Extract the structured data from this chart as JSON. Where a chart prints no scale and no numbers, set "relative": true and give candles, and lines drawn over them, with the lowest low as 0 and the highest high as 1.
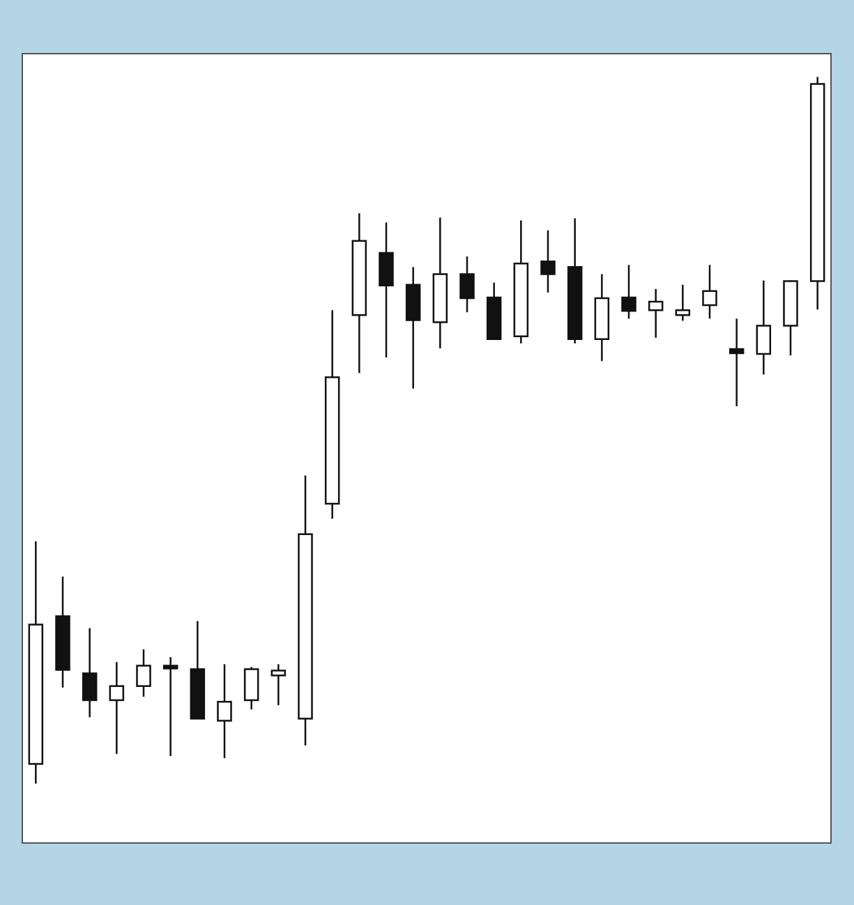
{
  "chart_data": {
    "type": "candlestick",
    "relative": true,
    "categories": [
      null,
      null,
      null,
      null,
      null,
      null,
      null,
      null,
      null,
      null,
      null,
      null,
      null,
      null,
      null,
      null,
      null,
      null,
      null,
      null,
      null,
      null,
      null,
      null,
      null,
      null,
      null,
      null,
      null,
      null
    ],
    "ohlc": [
      [
        0.028,
        0.343,
        0,
        0.225
      ],
      [
        0.237,
        0.293,
        0.136,
        0.161
      ],
      [
        0.156,
        0.22,
        0.094,
        0.118
      ],
      [
        0.118,
        0.172,
        0.042,
        0.138
      ],
      [
        0.138,
        0.19,
        0.123,
        0.167
      ],
      [
        0.167,
        0.179,
        0.039,
        0.163
      ],
      [
        0.162,
        0.23,
        0.092,
        0.092
      ],
      [
        0.089,
        0.169,
        0.036,
        0.116
      ],
      [
        0.118,
        0.165,
        0.105,
        0.162
      ],
      [
        0.153,
        0.169,
        0.111,
        0.16
      ],
      [
        0.092,
        0.436,
        0.054,
        0.353
      ],
      [
        0.396,
        0.67,
        0.375,
        0.575
      ],
      [
        0.663,
        0.807,
        0.581,
        0.768
      ],
      [
        0.751,
        0.794,
        0.603,
        0.705
      ],
      [
        0.706,
        0.731,
        0.559,
        0.656
      ],
      [
        0.653,
        0.801,
        0.616,
        0.721
      ],
      [
        0.721,
        0.746,
        0.667,
        0.687
      ],
      [
        0.688,
        0.709,
        0.629,
        0.629
      ],
      [
        0.633,
        0.797,
        0.623,
        0.736
      ],
      [
        0.739,
        0.783,
        0.695,
        0.721
      ],
      [
        0.731,
        0.8,
        0.623,
        0.629
      ],
      [
        0.629,
        0.721,
        0.598,
        0.687
      ],
      [
        0.688,
        0.734,
        0.658,
        0.669
      ],
      [
        0.67,
        0.7,
        0.631,
        0.682
      ],
      [
        0.663,
        0.706,
        0.655,
        0.67
      ],
      [
        0.677,
        0.734,
        0.658,
        0.697
      ],
      [
        0.615,
        0.658,
        0.534,
        0.609
      ],
      [
        0.608,
        0.712,
        0.579,
        0.648
      ],
      [
        0.648,
        0.712,
        0.606,
        0.711
      ],
      [
        0.711,
        1,
        0.671,
        0.99
      ]
    ]
  }
}
